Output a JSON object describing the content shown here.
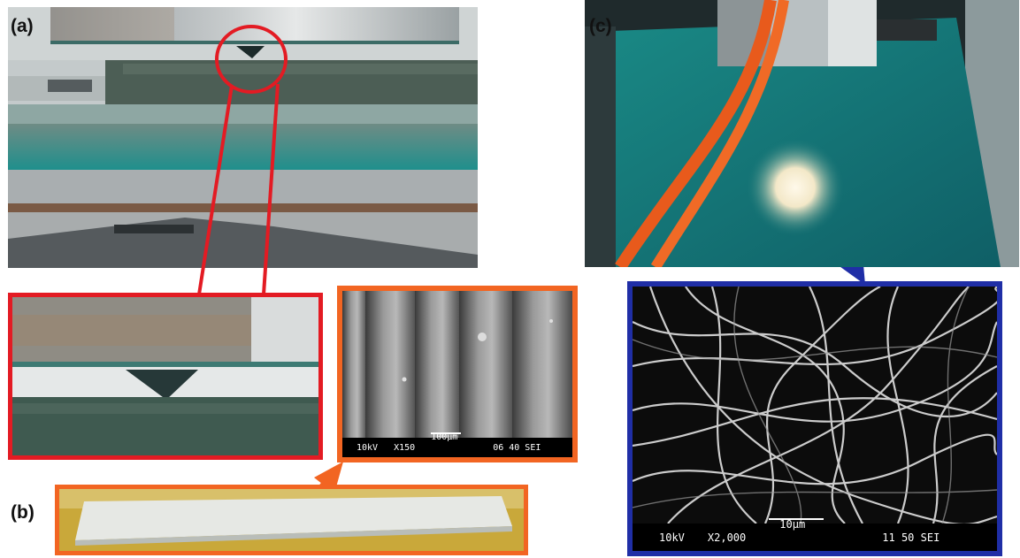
{
  "labels": {
    "a": "(a)",
    "b": "(b)",
    "c": "(c)"
  },
  "sem_b": {
    "kv": "10kV",
    "mag": "X150",
    "scale": "100µm",
    "id": "06 40 SEI"
  },
  "sem_c": {
    "kv": "10kV",
    "mag": "X2,000",
    "scale": "10µm",
    "id": "11 50 SEI"
  },
  "colors": {
    "red": "#e31b23",
    "orange": "#f26522",
    "blue": "#1f2ea6"
  }
}
